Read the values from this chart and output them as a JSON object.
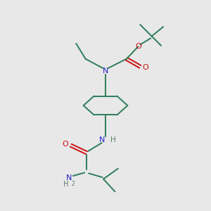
{
  "bg_color": "#e8e8e8",
  "bond_color": "#2d7d5a",
  "N_color": "#2222cc",
  "O_color": "#cc1111",
  "H_color": "#5a7a6a",
  "figsize": [
    3.0,
    3.0
  ],
  "dpi": 100,
  "xlim": [
    0,
    10
  ],
  "ylim": [
    0,
    10
  ]
}
